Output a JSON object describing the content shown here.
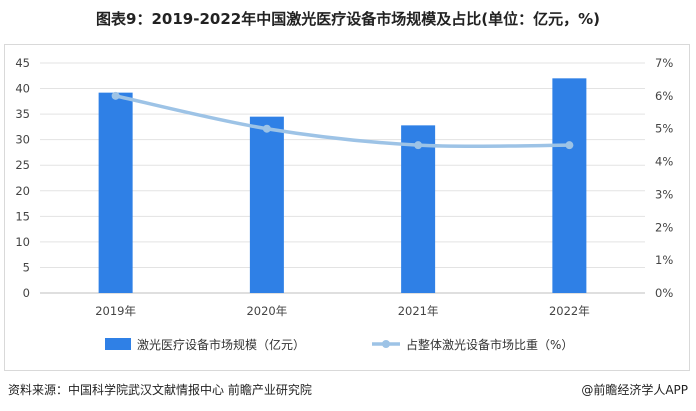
{
  "chart_data": {
    "type": "bar",
    "title": "图表9：2019-2022年中国激光医疗设备市场规模及占比(单位：亿元，%)",
    "categories": [
      "2019年",
      "2020年",
      "2021年",
      "2022年"
    ],
    "series": [
      {
        "name": "激光医疗设备市场规模（亿元）",
        "type": "bar",
        "axis": "left",
        "values": [
          39.2,
          34.5,
          32.8,
          42.0
        ],
        "color": "#2f80e6"
      },
      {
        "name": "占整体激光设备市场比重（%）",
        "type": "line",
        "axis": "right",
        "values": [
          6.0,
          5.0,
          4.5,
          4.5
        ],
        "color": "#9dc3e6"
      }
    ],
    "ylim_left": [
      0,
      45
    ],
    "yticks_left": [
      "0",
      "5",
      "10",
      "15",
      "20",
      "25",
      "30",
      "35",
      "40",
      "45"
    ],
    "ylim_right": [
      0,
      7
    ],
    "yticks_right": [
      "0%",
      "1%",
      "2%",
      "3%",
      "4%",
      "5%",
      "6%",
      "7%"
    ],
    "grid": true,
    "legend_position": "bottom"
  },
  "footer": {
    "source": "资料来源：中国科学院武汉文献情报中心 前瞻产业研究院",
    "brand": "@前瞻经济学人APP"
  }
}
